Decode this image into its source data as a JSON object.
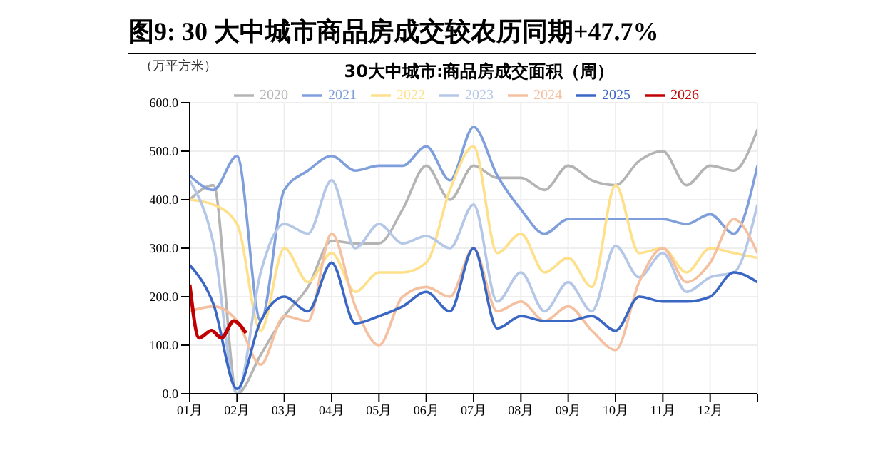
{
  "chart_data": {
    "type": "line",
    "title": "图9:  30 大中城市商品房成交较农历同期+47.7%",
    "subtitle": "30大中城市:商品房成交面积（周）",
    "ylabel": "（万平方米）",
    "x": [
      1,
      1.5,
      2,
      2.5,
      3,
      3.5,
      4,
      4.5,
      5,
      5.5,
      6,
      6.5,
      7,
      7.5,
      8,
      8.5,
      9,
      9.5,
      10,
      10.5,
      11,
      11.5,
      12,
      12.5,
      13
    ],
    "xlim": [
      1,
      13
    ],
    "xticks": [
      {
        "value": 1,
        "label": "01月"
      },
      {
        "value": 2,
        "label": "02月"
      },
      {
        "value": 3,
        "label": "03月"
      },
      {
        "value": 4,
        "label": "04月"
      },
      {
        "value": 5,
        "label": "05月"
      },
      {
        "value": 6,
        "label": "06月"
      },
      {
        "value": 7,
        "label": "07月"
      },
      {
        "value": 8,
        "label": "08月"
      },
      {
        "value": 9,
        "label": "09月"
      },
      {
        "value": 10,
        "label": "10月"
      },
      {
        "value": 11,
        "label": "11月"
      },
      {
        "value": 12,
        "label": "12月"
      },
      {
        "value": 13,
        "label": null
      }
    ],
    "ylim": [
      0,
      600
    ],
    "yticks": [
      {
        "value": 0,
        "label": "0.0"
      },
      {
        "value": 100,
        "label": "100.0"
      },
      {
        "value": 200,
        "label": "200.0"
      },
      {
        "value": 300,
        "label": "300.0"
      },
      {
        "value": 400,
        "label": "400.0"
      },
      {
        "value": 500,
        "label": "500.0"
      },
      {
        "value": 600,
        "label": "600.0"
      }
    ],
    "grid": true,
    "legend": "top",
    "marker": "none",
    "line_style": "solid",
    "series": [
      {
        "name": "2020",
        "color": "#b4b4b4",
        "values": [
          400,
          430,
          0,
          80,
          160,
          220,
          315,
          310,
          310,
          380,
          470,
          400,
          470,
          445,
          445,
          420,
          470,
          440,
          430,
          480,
          500,
          430,
          470,
          460,
          545
        ]
      },
      {
        "name": "2021",
        "color": "#7f9fdc",
        "values": [
          450,
          420,
          490,
          150,
          420,
          460,
          490,
          460,
          470,
          470,
          510,
          440,
          550,
          450,
          380,
          330,
          360,
          360,
          360,
          360,
          360,
          350,
          370,
          330,
          470
        ]
      },
      {
        "name": "2022",
        "color": "#ffe08a",
        "values": [
          400,
          390,
          350,
          130,
          300,
          230,
          290,
          210,
          250,
          250,
          270,
          420,
          510,
          290,
          330,
          250,
          280,
          220,
          430,
          290,
          300,
          250,
          300,
          290,
          280
        ]
      },
      {
        "name": "2023",
        "color": "#b4c7e7",
        "values": [
          440,
          310,
          0,
          250,
          350,
          330,
          440,
          300,
          350,
          310,
          325,
          300,
          390,
          190,
          250,
          170,
          230,
          170,
          305,
          240,
          290,
          210,
          240,
          250,
          390
        ]
      },
      {
        "name": "2024",
        "color": "#f4c0a0",
        "values": [
          170,
          180,
          150,
          60,
          160,
          150,
          330,
          180,
          100,
          200,
          220,
          200,
          300,
          170,
          190,
          150,
          180,
          130,
          90,
          230,
          300,
          230,
          270,
          360,
          290
        ]
      },
      {
        "name": "2025",
        "color": "#3a66c4",
        "values": [
          265,
          185,
          10,
          150,
          200,
          170,
          270,
          145,
          160,
          180,
          210,
          170,
          300,
          135,
          160,
          150,
          150,
          160,
          130,
          200,
          190,
          190,
          200,
          250,
          230
        ]
      },
      {
        "name": "2026",
        "color": "#c00000",
        "x": [
          1,
          1.2,
          1.46,
          1.67,
          1.93,
          2.19
        ],
        "values": [
          225,
          115,
          130,
          115,
          150,
          125
        ]
      }
    ]
  }
}
